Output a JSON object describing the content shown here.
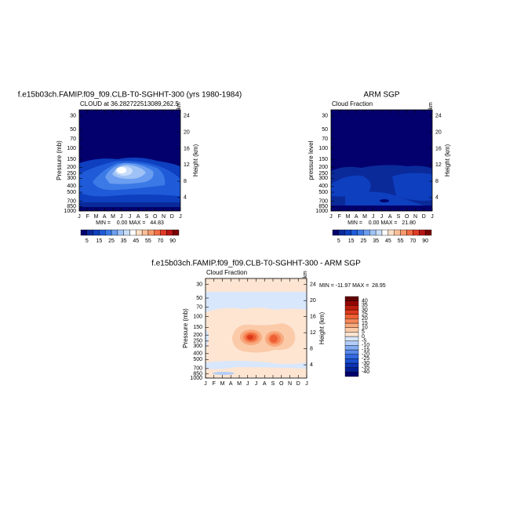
{
  "chart_data": [
    {
      "type": "contour",
      "title": "f.e15b03ch.FAMIP.f09_f09.CLB-T0-SGHHT-300 (yrs 1980-1984)",
      "subtitle": "CLOUD at 36.282722513089,262.5",
      "ylabel": "Pressure (mb)",
      "y2label": "Height (km)",
      "corner_label": "km",
      "categories": [
        "J",
        "F",
        "M",
        "A",
        "M",
        "J",
        "J",
        "A",
        "S",
        "O",
        "N",
        "D",
        "J"
      ],
      "ylim": [
        1000,
        24
      ],
      "ylog": true,
      "yticks": [
        30,
        50,
        70,
        100,
        150,
        200,
        250,
        300,
        400,
        500,
        700,
        850,
        1000
      ],
      "y2lim": [
        0.7,
        25.5
      ],
      "y2ticks": [
        4,
        8,
        12,
        16,
        20,
        24
      ],
      "stats": "MIN =    0.00 MAX =   44.83",
      "colorbar": {
        "orientation": "horizontal",
        "levels": [
          5,
          10,
          15,
          20,
          25,
          30,
          35,
          40,
          45,
          50,
          55,
          60,
          70,
          80,
          90
        ],
        "ticks": [
          5,
          15,
          25,
          35,
          45,
          55,
          70,
          90
        ],
        "colors": [
          "#03006d",
          "#0a2a9a",
          "#0d3fbf",
          "#1f5bd8",
          "#3b7ae6",
          "#6b9df0",
          "#9fc2f6",
          "#c9defa",
          "#ffffff",
          "#fde0c5",
          "#fbbf98",
          "#f89a6d",
          "#f26d45",
          "#e03a26",
          "#b81414",
          "#7a0000"
        ]
      }
    },
    {
      "type": "contour",
      "title": "ARM SGP",
      "subtitle": "Cloud Fraction",
      "ylabel": "pressure level",
      "y2label": "Height (km)",
      "corner_label": "km",
      "categories": [
        "J",
        "F",
        "M",
        "A",
        "M",
        "J",
        "J",
        "A",
        "S",
        "O",
        "N",
        "D",
        "J"
      ],
      "ylim": [
        1000,
        24
      ],
      "ylog": true,
      "yticks": [
        30,
        50,
        70,
        100,
        150,
        200,
        250,
        300,
        400,
        500,
        700,
        850,
        1000
      ],
      "y2lim": [
        0.7,
        25.5
      ],
      "y2ticks": [
        4,
        8,
        12,
        16,
        20,
        24
      ],
      "stats": "MIN =    0.00 MAX =   21.80",
      "colorbar": {
        "orientation": "horizontal",
        "levels": [
          5,
          10,
          15,
          20,
          25,
          30,
          35,
          40,
          45,
          50,
          55,
          60,
          70,
          80,
          90
        ],
        "ticks": [
          5,
          15,
          25,
          35,
          45,
          55,
          70,
          90
        ],
        "colors": [
          "#03006d",
          "#0a2a9a",
          "#0d3fbf",
          "#1f5bd8",
          "#3b7ae6",
          "#6b9df0",
          "#9fc2f6",
          "#c9defa",
          "#ffffff",
          "#fde0c5",
          "#fbbf98",
          "#f89a6d",
          "#f26d45",
          "#e03a26",
          "#b81414",
          "#7a0000"
        ]
      }
    },
    {
      "type": "contour",
      "title": "f.e15b03ch.FAMIP.f09_f09.CLB-T0-SGHHT-300 - ARM SGP",
      "subtitle": "Cloud Fraction",
      "ylabel": "Pressure (mb)",
      "y2label": "Height (km)",
      "corner_label": "km",
      "categories": [
        "J",
        "F",
        "M",
        "A",
        "M",
        "J",
        "J",
        "A",
        "S",
        "O",
        "N",
        "D",
        "J"
      ],
      "ylim": [
        1000,
        24
      ],
      "ylog": true,
      "yticks": [
        30,
        50,
        70,
        100,
        150,
        200,
        250,
        300,
        400,
        500,
        700,
        850,
        1000
      ],
      "y2lim": [
        0.7,
        25.5
      ],
      "y2ticks": [
        4,
        8,
        12,
        16,
        20,
        24
      ],
      "stats": "MIN = -11.97 MAX =  28.95",
      "colorbar": {
        "orientation": "vertical",
        "levels": [
          -40,
          -35,
          -30,
          -25,
          -20,
          -15,
          -10,
          -5,
          0,
          5,
          10,
          15,
          20,
          25,
          30,
          35,
          40
        ],
        "ticks": [
          -40,
          -35,
          -30,
          -25,
          -20,
          -15,
          -10,
          -5,
          0,
          5,
          10,
          15,
          20,
          25,
          30,
          35,
          40
        ],
        "colors": [
          "#03006d",
          "#071f94",
          "#0b33b3",
          "#1a4fd0",
          "#3368e0",
          "#5889ec",
          "#84acf3",
          "#b2cdf8",
          "#d8e7fc",
          "#fde5d2",
          "#fbcaa8",
          "#f9a97e",
          "#f58658",
          "#ee6034",
          "#dc3a1c",
          "#bd1b0c",
          "#930500",
          "#640000"
        ]
      }
    }
  ]
}
